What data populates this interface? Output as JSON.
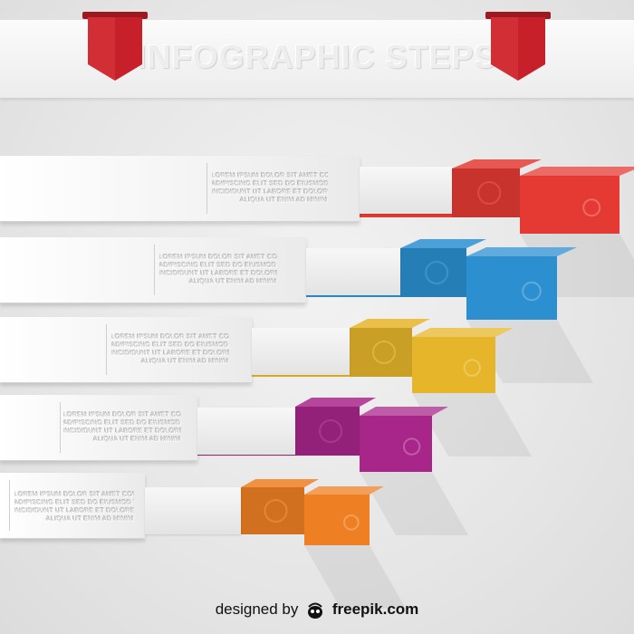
{
  "header": {
    "title": "INFOGRAPHIC STEPS"
  },
  "steps": [
    {
      "color": "#e43a33",
      "lines": [
        "LOREM IPSUM DOLOR SIT AMET CONSECTETUR",
        "ADIPISCING ELIT SED DO EIUSMOD TEMPOR",
        "INCIDIDUNT UT LABORE ET DOLORE MAGNA",
        "ALIQUA UT ENIM AD MINIM"
      ]
    },
    {
      "color": "#2b8fd0",
      "lines": [
        "LOREM IPSUM DOLOR SIT AMET CONSECTETUR",
        "ADIPISCING ELIT SED DO EIUSMOD TEMPOR",
        "INCIDIDUNT UT LABORE ET DOLORE MAGNA",
        "ALIQUA UT ENIM AD MINIM"
      ]
    },
    {
      "color": "#e6b52a",
      "lines": [
        "LOREM IPSUM DOLOR SIT AMET CONSECTETUR",
        "ADIPISCING ELIT SED DO EIUSMOD TEMPOR",
        "INCIDIDUNT UT LABORE ET DOLORE MAGNA",
        "ALIQUA UT ENIM AD MINIM"
      ]
    },
    {
      "color": "#a8258a",
      "lines": [
        "LOREM IPSUM DOLOR SIT AMET CONSECTETUR",
        "ADIPISCING ELIT SED DO EIUSMOD TEMPOR",
        "INCIDIDUNT UT LABORE ET DOLORE MAGNA",
        "ALIQUA UT ENIM AD MINIM"
      ]
    },
    {
      "color": "#ee7f22",
      "lines": [
        "LOREM IPSUM DOLOR SIT AMET CONSECTETUR",
        "ADIPISCING ELIT SED DO EIUSMOD TEMPOR",
        "INCIDIDUNT UT LABORE ET DOLORE MAGNA",
        "ALIQUA UT ENIM AD MINIM"
      ]
    }
  ],
  "footer": {
    "prefix": "designed by",
    "brand": "freepik.com"
  },
  "colors": {
    "ribbon": "#c8202a",
    "background": "#e8e8e8"
  }
}
